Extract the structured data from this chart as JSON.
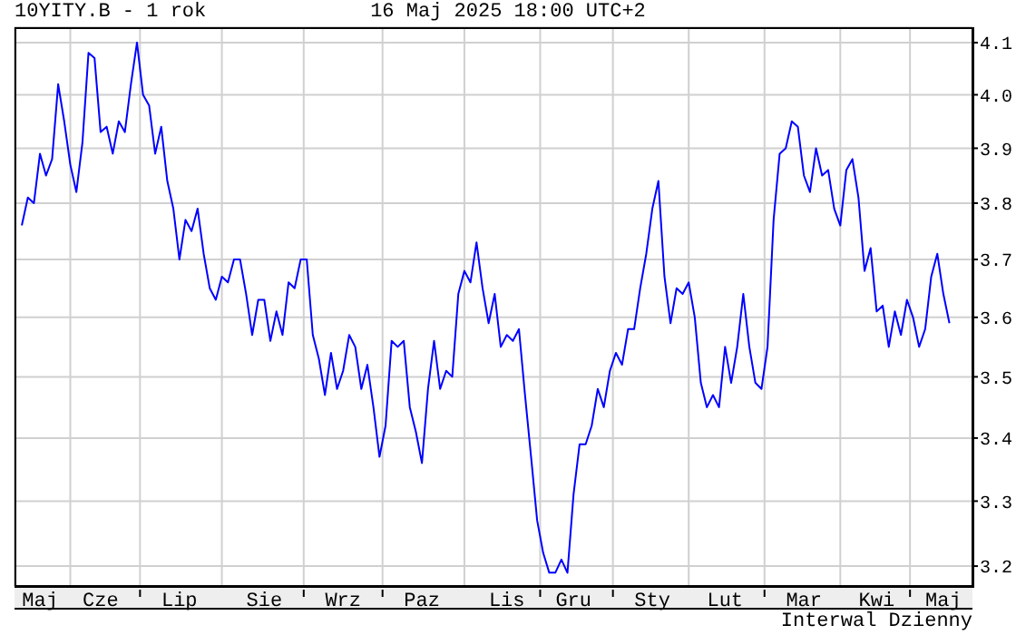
{
  "chart_data": {
    "type": "line",
    "title": "10YITY.B - 1 rok",
    "annotations": [
      "16 Maj 2025 18:00 UTC+2",
      "Interwal Dzienny"
    ],
    "categories": [
      null,
      null,
      null,
      "Maj",
      null,
      null,
      null,
      null,
      null,
      null,
      null,
      null,
      null,
      "Cze",
      null,
      null,
      null,
      null,
      null,
      null,
      null,
      null,
      null,
      null,
      null,
      null,
      "Lip",
      null,
      null,
      null,
      null,
      null,
      null,
      null,
      null,
      null,
      null,
      null,
      null,
      null,
      "Sie",
      null,
      null,
      null,
      null,
      null,
      null,
      null,
      null,
      null,
      null,
      null,
      null,
      "Wrz",
      null,
      null,
      null,
      null,
      null,
      null,
      null,
      null,
      null,
      null,
      null,
      null,
      "Paz",
      null,
      null,
      null,
      null,
      null,
      null,
      null,
      null,
      null,
      null,
      null,
      null,
      null,
      "Lis",
      null,
      null,
      null,
      null,
      null,
      null,
      null,
      null,
      null,
      null,
      "Gru",
      null,
      null,
      null,
      null,
      null,
      null,
      null,
      null,
      null,
      null,
      null,
      null,
      "Sty",
      null,
      null,
      null,
      null,
      null,
      null,
      null,
      null,
      null,
      null,
      null,
      "Lut",
      null,
      null,
      null,
      null,
      null,
      null,
      null,
      null,
      null,
      null,
      null,
      null,
      "Mar",
      null,
      null,
      null,
      null,
      null,
      null,
      null,
      null,
      null,
      null,
      null,
      "Kwi",
      null,
      null,
      null,
      null,
      null,
      null,
      null,
      null,
      null,
      null,
      "Maj",
      null
    ],
    "series": [
      {
        "color": "#0000ff",
        "values": [
          3.76,
          3.81,
          3.8,
          3.89,
          3.85,
          3.88,
          4.02,
          3.95,
          3.87,
          3.82,
          3.91,
          4.08,
          4.07,
          3.93,
          3.94,
          3.89,
          3.95,
          3.93,
          4.02,
          4.1,
          4.0,
          3.98,
          3.89,
          3.94,
          3.84,
          3.79,
          3.7,
          3.77,
          3.75,
          3.79,
          3.71,
          3.65,
          3.63,
          3.67,
          3.66,
          3.7,
          3.7,
          3.64,
          3.57,
          3.63,
          3.63,
          3.56,
          3.61,
          3.57,
          3.66,
          3.65,
          3.7,
          3.7,
          3.57,
          3.53,
          3.47,
          3.54,
          3.48,
          3.51,
          3.57,
          3.55,
          3.48,
          3.52,
          3.45,
          3.37,
          3.42,
          3.56,
          3.55,
          3.56,
          3.45,
          3.41,
          3.36,
          3.48,
          3.56,
          3.48,
          3.51,
          3.5,
          3.64,
          3.68,
          3.66,
          3.73,
          3.65,
          3.59,
          3.64,
          3.55,
          3.57,
          3.56,
          3.58,
          3.47,
          3.37,
          3.27,
          3.22,
          3.19,
          3.19,
          3.21,
          3.19,
          3.31,
          3.39,
          3.39,
          3.42,
          3.48,
          3.45,
          3.51,
          3.54,
          3.52,
          3.58,
          3.58,
          3.65,
          3.71,
          3.79,
          3.84,
          3.67,
          3.59,
          3.65,
          3.64,
          3.66,
          3.6,
          3.49,
          3.45,
          3.47,
          3.45,
          3.55,
          3.49,
          3.55,
          3.64,
          3.55,
          3.49,
          3.48,
          3.55,
          3.77,
          3.89,
          3.9,
          3.95,
          3.94,
          3.85,
          3.82,
          3.9,
          3.85,
          3.86,
          3.79,
          3.76,
          3.86,
          3.88,
          3.81,
          3.68,
          3.72,
          3.61,
          3.62,
          3.55,
          3.61,
          3.57,
          3.63,
          3.6,
          3.55,
          3.58,
          3.67,
          3.71,
          3.64,
          3.59
        ]
      }
    ],
    "ylim": [
      3.17,
      4.13
    ],
    "yticks": [
      3.2,
      3.3,
      3.4,
      3.5,
      3.6,
      3.7,
      3.8,
      3.9,
      {
        "value": 4.0,
        "label": "4.0"
      },
      4.1
    ],
    "log": true,
    "grid": true
  }
}
